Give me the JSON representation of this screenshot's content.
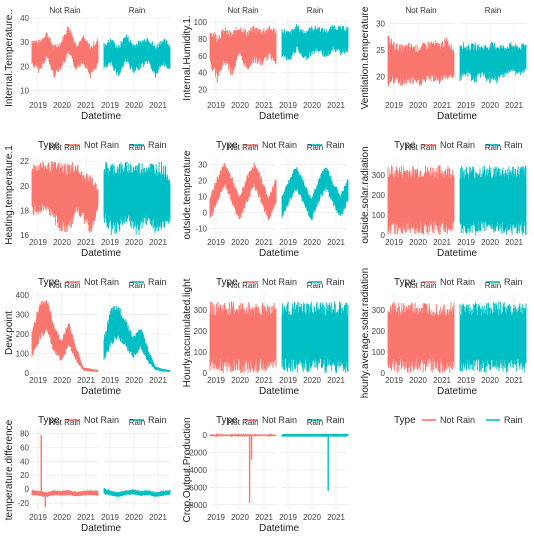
{
  "chart_data": [
    {
      "type": "line",
      "facets": [
        "Not Rain",
        "Rain"
      ],
      "xlabel": "Datetime",
      "ylabel": "Internal.Temperature..",
      "x_ticks": [
        "2019",
        "2020",
        "2021",
        "2019",
        "2020",
        "2021"
      ],
      "y_ticks": [
        "10",
        "20",
        "30",
        "40"
      ],
      "ylim": [
        7,
        40
      ],
      "series": [
        {
          "name": "Not Rain",
          "color": "#F8766D",
          "mean": [
            26,
            24,
            29,
            22,
            25,
            31,
            24,
            27,
            22,
            26
          ],
          "band": [
            6,
            7,
            6,
            7,
            6,
            7,
            6,
            6,
            7,
            6
          ]
        },
        {
          "name": "Rain",
          "color": "#00BFC4",
          "mean": [
            24,
            26,
            22,
            28,
            23,
            25,
            27,
            22,
            26,
            24
          ],
          "band": [
            6,
            6,
            7,
            6,
            7,
            6,
            6,
            7,
            6,
            6
          ]
        }
      ],
      "legend": {
        "title": "Type",
        "labels": [
          "Not Rain",
          "Rain"
        ],
        "position": "bottom"
      }
    },
    {
      "type": "line",
      "facets": [
        "Not Rain",
        "Rain"
      ],
      "xlabel": "Datetime",
      "ylabel": "Internal.Humidity.1.",
      "x_ticks": [
        "2019",
        "2020",
        "2021",
        "2019",
        "2020",
        "2021"
      ],
      "y_ticks": [
        "20",
        "40",
        "60",
        "80",
        "100"
      ],
      "ylim": [
        10,
        105
      ],
      "series": [
        {
          "name": "Not Rain",
          "color": "#F8766D",
          "mean": [
            70,
            58,
            72,
            62,
            78,
            66,
            74,
            70,
            76,
            72
          ],
          "band": [
            22,
            30,
            22,
            28,
            20,
            26,
            22,
            24,
            20,
            22
          ]
        },
        {
          "name": "Rain",
          "color": "#00BFC4",
          "mean": [
            76,
            70,
            82,
            72,
            78,
            80,
            74,
            82,
            78,
            80
          ],
          "band": [
            18,
            20,
            16,
            20,
            18,
            16,
            18,
            16,
            18,
            16
          ]
        }
      ],
      "legend": {
        "title": "Type",
        "labels": [
          "Not Rain",
          "Rain"
        ],
        "position": "bottom"
      }
    },
    {
      "type": "line",
      "facets": [
        "Not Rain",
        "Rain"
      ],
      "xlabel": "Datetime",
      "ylabel": "Ventilation.temperature",
      "x_ticks": [
        "2019",
        "2020",
        "2021",
        "2019",
        "2020",
        "2021"
      ],
      "y_ticks": [
        "20",
        "25",
        "30"
      ],
      "ylim": [
        16,
        31
      ],
      "series": [
        {
          "name": "Not Rain",
          "color": "#F8766D",
          "mean": [
            23,
            22.5,
            22,
            22.5,
            22,
            22.5,
            23,
            22.5,
            23.5,
            22.5
          ],
          "band": [
            5,
            4,
            4,
            4,
            4,
            4,
            4,
            4,
            4,
            3
          ]
        },
        {
          "name": "Rain",
          "color": "#00BFC4",
          "mean": [
            23,
            23,
            22.5,
            23,
            22.5,
            22.5,
            23,
            23.5,
            23,
            23.5
          ],
          "band": [
            4,
            3,
            4,
            3,
            4,
            4,
            3,
            3,
            3,
            3
          ]
        }
      ],
      "legend": {
        "title": "Type",
        "labels": [
          "Not Rain",
          "Rain"
        ],
        "position": "bottom"
      }
    },
    {
      "type": "line",
      "facets": [
        "Not Rain",
        "Rain"
      ],
      "xlabel": "Datetime",
      "ylabel": "Heating.temperature.1",
      "x_ticks": [
        "2019",
        "2020",
        "2021",
        "2019",
        "2020",
        "2021"
      ],
      "y_ticks": [
        "16",
        "18",
        "20",
        "22"
      ],
      "ylim": [
        16,
        22.5
      ],
      "series": [
        {
          "name": "Not Rain",
          "color": "#F8766D",
          "mean": [
            19.8,
            19.8,
            19.8,
            19.5,
            19,
            19,
            19.8,
            19,
            18.5,
            19
          ],
          "band": [
            2.2,
            2.2,
            2.2,
            2.5,
            3,
            3,
            2.2,
            2,
            2.5,
            1
          ]
        },
        {
          "name": "Rain",
          "color": "#00BFC4",
          "mean": [
            19.5,
            19,
            19,
            19.5,
            19,
            19,
            19.5,
            19,
            19,
            19
          ],
          "band": [
            2.5,
            3,
            3,
            2.5,
            3,
            3,
            2.5,
            3,
            3,
            2
          ]
        }
      ],
      "legend": {
        "title": "Type",
        "labels": [
          "Not Rain",
          "Rain"
        ],
        "position": "bottom"
      }
    },
    {
      "type": "line",
      "facets": [
        "Not Rain",
        "Rain"
      ],
      "xlabel": "Datetime",
      "ylabel": "outside.temperature",
      "x_ticks": [
        "2019",
        "2020",
        "2021",
        "2019",
        "2020",
        "2021"
      ],
      "y_ticks": [
        "-10",
        "0",
        "10",
        "20",
        "30"
      ],
      "ylim": [
        -14,
        36
      ],
      "series": [
        {
          "name": "Not Rain",
          "color": "#F8766D",
          "mean": [
            2,
            14,
            24,
            14,
            2,
            14,
            24,
            14,
            2,
            14
          ],
          "band": [
            8,
            9,
            8,
            9,
            8,
            9,
            8,
            9,
            8,
            9
          ]
        },
        {
          "name": "Rain",
          "color": "#00BFC4",
          "mean": [
            4,
            14,
            22,
            12,
            2,
            14,
            22,
            12,
            4,
            14
          ],
          "band": [
            8,
            8,
            8,
            8,
            8,
            8,
            8,
            8,
            8,
            8
          ]
        }
      ],
      "legend": {
        "title": "Type",
        "labels": [
          "Not Rain",
          "Rain"
        ],
        "position": "bottom"
      }
    },
    {
      "type": "line",
      "facets": [
        "Not Rain",
        "Rain"
      ],
      "xlabel": "Datetime",
      "ylabel": "outside.solar.radiation",
      "x_ticks": [
        "2019",
        "2020",
        "2021",
        "2019",
        "2020",
        "2021"
      ],
      "y_ticks": [
        "0",
        "100",
        "200",
        "300"
      ],
      "ylim": [
        0,
        400
      ],
      "series": [
        {
          "name": "Not Rain",
          "color": "#F8766D",
          "mean": [
            175,
            175,
            175,
            175,
            175,
            175,
            175,
            175,
            175,
            175
          ],
          "band": [
            175,
            175,
            175,
            175,
            175,
            175,
            175,
            175,
            175,
            175
          ]
        },
        {
          "name": "Rain",
          "color": "#00BFC4",
          "mean": [
            175,
            175,
            175,
            175,
            175,
            175,
            175,
            175,
            175,
            175
          ],
          "band": [
            175,
            175,
            175,
            175,
            175,
            175,
            175,
            175,
            175,
            175
          ]
        }
      ],
      "legend": {
        "title": "Type",
        "labels": [
          "Not Rain",
          "Rain"
        ],
        "position": "bottom"
      }
    },
    {
      "type": "line",
      "facets": [
        "Not Rain",
        "Rain"
      ],
      "xlabel": "Datetime",
      "ylabel": "Dew.point",
      "x_ticks": [
        "2019",
        "2020",
        "2021",
        "2019",
        "2020",
        "2021"
      ],
      "y_ticks": [
        "0",
        "100",
        "200",
        "300",
        "400"
      ],
      "ylim": [
        0,
        410
      ],
      "series": [
        {
          "name": "Not Rain",
          "color": "#F8766D",
          "mean": [
            150,
            260,
            300,
            180,
            110,
            200,
            100,
            20,
            15,
            10
          ],
          "band": [
            70,
            110,
            90,
            80,
            60,
            70,
            40,
            10,
            8,
            5
          ]
        },
        {
          "name": "Rain",
          "color": "#00BFC4",
          "mean": [
            120,
            240,
            260,
            200,
            130,
            180,
            90,
            25,
            15,
            10
          ],
          "band": [
            70,
            100,
            90,
            80,
            60,
            60,
            40,
            10,
            8,
            5
          ]
        }
      ],
      "legend": {
        "title": "Type",
        "labels": [
          "Not Rain",
          "Rain"
        ],
        "position": "bottom"
      }
    },
    {
      "type": "line",
      "facets": [
        "Not Rain",
        "Rain"
      ],
      "xlabel": "Datetime",
      "ylabel": "Hourly.accumulated.light",
      "x_ticks": [
        "2019",
        "2020",
        "2021",
        "2019",
        "2020",
        "2021"
      ],
      "y_ticks": [
        "0",
        "100",
        "200",
        "300"
      ],
      "ylim": [
        0,
        380
      ],
      "series": [
        {
          "name": "Not Rain",
          "color": "#F8766D",
          "mean": [
            170,
            170,
            170,
            170,
            170,
            170,
            170,
            170,
            170,
            170
          ],
          "band": [
            170,
            170,
            170,
            170,
            170,
            170,
            170,
            170,
            170,
            170
          ]
        },
        {
          "name": "Rain",
          "color": "#00BFC4",
          "mean": [
            170,
            170,
            170,
            170,
            170,
            170,
            170,
            170,
            170,
            170
          ],
          "band": [
            170,
            170,
            170,
            170,
            170,
            170,
            170,
            170,
            170,
            170
          ]
        }
      ],
      "legend": {
        "title": "Type",
        "labels": [
          "Not Rain",
          "Rain"
        ],
        "position": "bottom"
      }
    },
    {
      "type": "line",
      "facets": [
        "Not Rain",
        "Rain"
      ],
      "xlabel": "Datetime",
      "ylabel": "hourly.average.solar.radiation",
      "x_ticks": [
        "2019",
        "2020",
        "2021",
        "2019",
        "2020",
        "2021"
      ],
      "y_ticks": [
        "0",
        "100",
        "200",
        "300"
      ],
      "ylim": [
        0,
        380
      ],
      "series": [
        {
          "name": "Not Rain",
          "color": "#F8766D",
          "mean": [
            170,
            170,
            170,
            170,
            170,
            170,
            170,
            170,
            170,
            170
          ],
          "band": [
            170,
            170,
            170,
            170,
            170,
            170,
            170,
            170,
            170,
            170
          ]
        },
        {
          "name": "Rain",
          "color": "#00BFC4",
          "mean": [
            170,
            170,
            170,
            170,
            170,
            170,
            170,
            170,
            170,
            170
          ],
          "band": [
            170,
            170,
            170,
            170,
            170,
            170,
            170,
            170,
            170,
            170
          ]
        }
      ],
      "legend": {
        "title": "Type",
        "labels": [
          "Not Rain",
          "Rain"
        ],
        "position": "bottom"
      }
    },
    {
      "type": "line",
      "facets": [
        "Not Rain",
        "Rain"
      ],
      "xlabel": "Datetime",
      "ylabel": "temperature.difference",
      "x_ticks": [
        "2019",
        "2020",
        "2021",
        "2019",
        "2020",
        "2021"
      ],
      "y_ticks": [
        "-20",
        "0",
        "20",
        "40",
        "60",
        "80"
      ],
      "ylim": [
        -30,
        85
      ],
      "series": [
        {
          "name": "Not Rain",
          "color": "#F8766D",
          "mean": [
            -5,
            -6,
            -8,
            -5,
            -6,
            -5,
            -7,
            -6,
            -5,
            -6
          ],
          "band": [
            4,
            4,
            4,
            4,
            4,
            4,
            4,
            4,
            4,
            4
          ],
          "spikes": [
            {
              "x": 0.14,
              "y": 78
            },
            {
              "x": 0.2,
              "y": -26
            }
          ]
        },
        {
          "name": "Rain",
          "color": "#00BFC4",
          "mean": [
            -3,
            -6,
            -8,
            -5,
            -4,
            -6,
            -5,
            -8,
            -6,
            -5
          ],
          "band": [
            5,
            4,
            4,
            4,
            4,
            4,
            4,
            4,
            4,
            4
          ]
        }
      ],
      "legend": {
        "title": "Type",
        "labels": [
          "Not Rain",
          "Rain"
        ],
        "position": "bottom"
      }
    },
    {
      "type": "line",
      "facets": [
        "Not Rain",
        "Rain"
      ],
      "xlabel": "Datetime",
      "ylabel": "Crop.Output.Production",
      "x_ticks": [
        "2019",
        "2020",
        "2021",
        "2019",
        "2020",
        "2021"
      ],
      "y_ticks": [
        "-8000",
        "-6000",
        "-4000",
        "-2000",
        "0"
      ],
      "ylim": [
        -8600,
        600
      ],
      "series": [
        {
          "name": "Not Rain",
          "color": "#F8766D",
          "mean": [
            0,
            0,
            0,
            0,
            0,
            0,
            0,
            0,
            0,
            0
          ],
          "band": [
            80,
            80,
            80,
            80,
            80,
            80,
            80,
            80,
            80,
            80
          ],
          "spikes": [
            {
              "x": 0.6,
              "y": -7800
            },
            {
              "x": 0.63,
              "y": -2800
            }
          ]
        },
        {
          "name": "Rain",
          "color": "#00BFC4",
          "mean": [
            0,
            0,
            0,
            0,
            0,
            0,
            0,
            0,
            0,
            0
          ],
          "band": [
            60,
            60,
            60,
            60,
            60,
            60,
            60,
            60,
            60,
            60
          ],
          "spikes": [
            {
              "x": 0.7,
              "y": -6400
            }
          ]
        }
      ],
      "legend": {
        "title": "Type",
        "labels": [
          "Not Rain",
          "Rain"
        ],
        "position": "bottom"
      }
    }
  ]
}
